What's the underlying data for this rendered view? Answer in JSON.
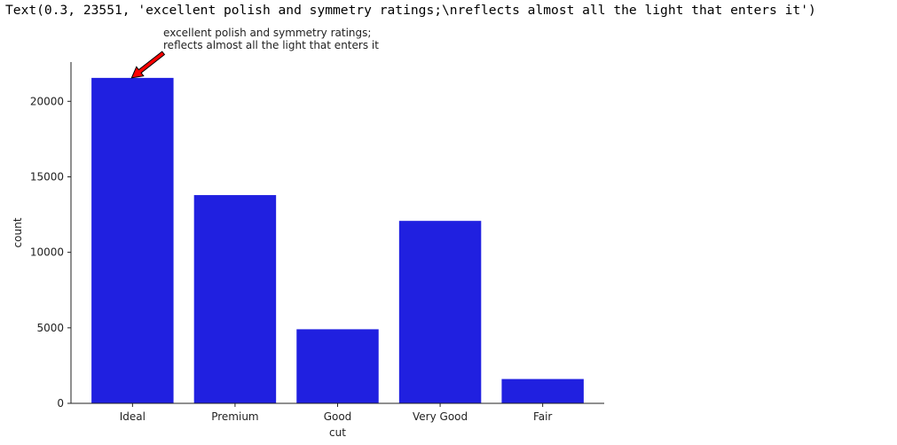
{
  "output": {
    "repr_text": "Text(0.3, 23551, 'excellent polish and symmetry ratings;\\nreflects almost all the light that enters it')"
  },
  "chart_data": {
    "type": "bar",
    "categories": [
      "Ideal",
      "Premium",
      "Good",
      "Very Good",
      "Fair"
    ],
    "values": [
      21551,
      13791,
      4906,
      12082,
      1610
    ],
    "xlabel": "cut",
    "ylabel": "count",
    "ylim": [
      0,
      22600
    ],
    "yticks": [
      0,
      5000,
      10000,
      15000,
      20000
    ],
    "ytick_labels": [
      "0",
      "5000",
      "10000",
      "15000",
      "20000"
    ],
    "bar_color": "#2020e0",
    "grid": false,
    "annotation": {
      "lines": [
        "excellent polish and symmetry ratings;",
        "reflects almost all the light that enters it"
      ],
      "xytext": [
        0.3,
        23551
      ],
      "xy": [
        0,
        21551
      ],
      "arrow_color": "#ff0000"
    }
  }
}
